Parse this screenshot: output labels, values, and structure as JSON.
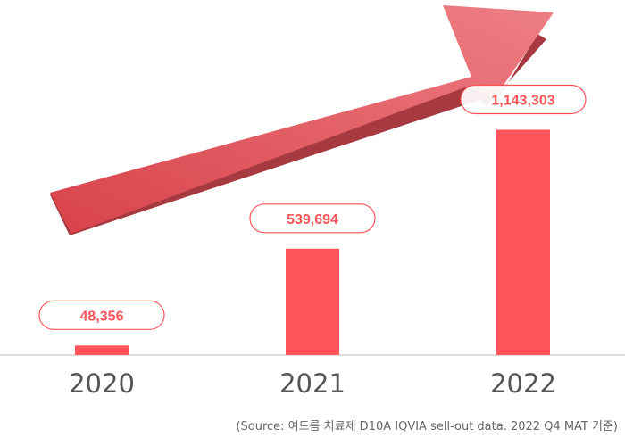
{
  "chart_data": {
    "type": "bar",
    "categories": [
      "2020",
      "2021",
      "2022"
    ],
    "values": [
      48356,
      539694,
      1143303
    ],
    "value_labels": [
      "48,356",
      "539,694",
      "1,143,303"
    ],
    "title": "",
    "xlabel": "",
    "ylabel": "",
    "ylim": [
      0,
      1150000
    ],
    "grid": false,
    "legend": "none",
    "annotation": "growth-arrow",
    "bar_color": "#ff5459",
    "arrow_color": "#e8666c",
    "source": "(Source: 여드름 치료제 D10A IQVIA sell-out data. 2022 Q4 MAT 기준)"
  }
}
